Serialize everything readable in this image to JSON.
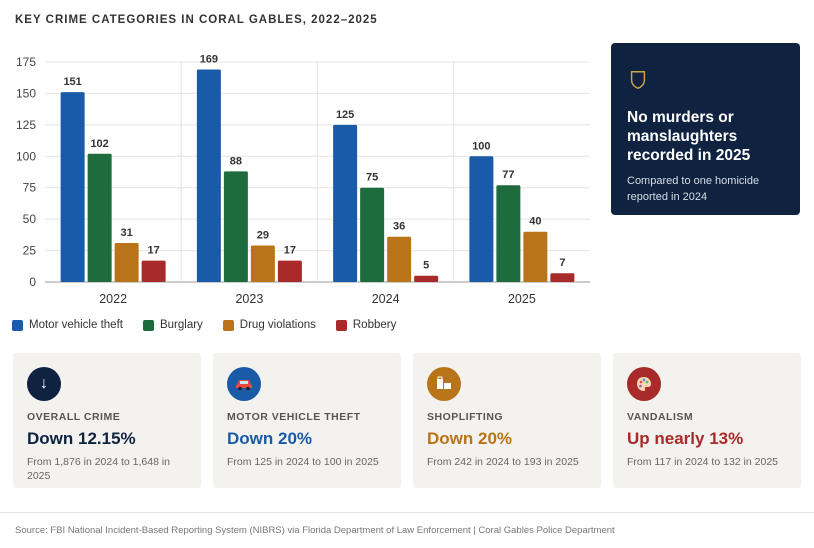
{
  "title": "KEY CRIME CATEGORIES IN CORAL GABLES, 2022–2025",
  "chart_data": {
    "type": "bar",
    "categories": [
      "2022",
      "2023",
      "2024",
      "2025"
    ],
    "series": [
      {
        "name": "Motor vehicle theft",
        "color": "#1a5ba8",
        "values": [
          151,
          169,
          125,
          100
        ]
      },
      {
        "name": "Burglary",
        "color": "#1e6b3d",
        "values": [
          102,
          88,
          75,
          77
        ]
      },
      {
        "name": "Drug violations",
        "color": "#b9741a",
        "values": [
          31,
          29,
          36,
          40
        ]
      },
      {
        "name": "Robbery",
        "color": "#a82a2a",
        "values": [
          17,
          17,
          5,
          7
        ]
      }
    ],
    "yticks": [
      0,
      25,
      50,
      75,
      100,
      125,
      150,
      175
    ],
    "ylim": [
      0,
      175
    ],
    "grid": true,
    "legend": "bottom-left"
  },
  "callout": {
    "icon": "shield-icon",
    "heading": "No murders or manslaughters recorded in 2025",
    "sub": "Compared to one homicide reported in 2024"
  },
  "cards": [
    {
      "icon": "arrow-down-icon",
      "icon_color": "#0f2341",
      "label": "OVERALL CRIME",
      "headline": "Down 12.15%",
      "headline_color": "#0f2341",
      "detail": "From 1,876 in 2024 to 1,648 in 2025"
    },
    {
      "icon": "car-icon",
      "icon_color": "#1a5ba8",
      "label": "MOTOR VEHICLE THEFT",
      "headline": "Down 20%",
      "headline_color": "#1a5ba8",
      "detail": "From 125 in 2024 to 100 in 2025"
    },
    {
      "icon": "shopping-bag-icon",
      "icon_color": "#b9741a",
      "label": "SHOPLIFTING",
      "headline": "Down 20%",
      "headline_color": "#b9741a",
      "detail": "From 242 in 2024 to 193 in 2025"
    },
    {
      "icon": "palette-icon",
      "icon_color": "#a82a2a",
      "label": "VANDALISM",
      "headline": "Up nearly 13%",
      "headline_color": "#a82a2a",
      "detail": "From 117 in 2024 to 132 in 2025"
    }
  ],
  "footer": "Source: FBI National Incident-Based Reporting System (NIBRS) via Florida Department of Law Enforcement  |  Coral Gables Police Department"
}
